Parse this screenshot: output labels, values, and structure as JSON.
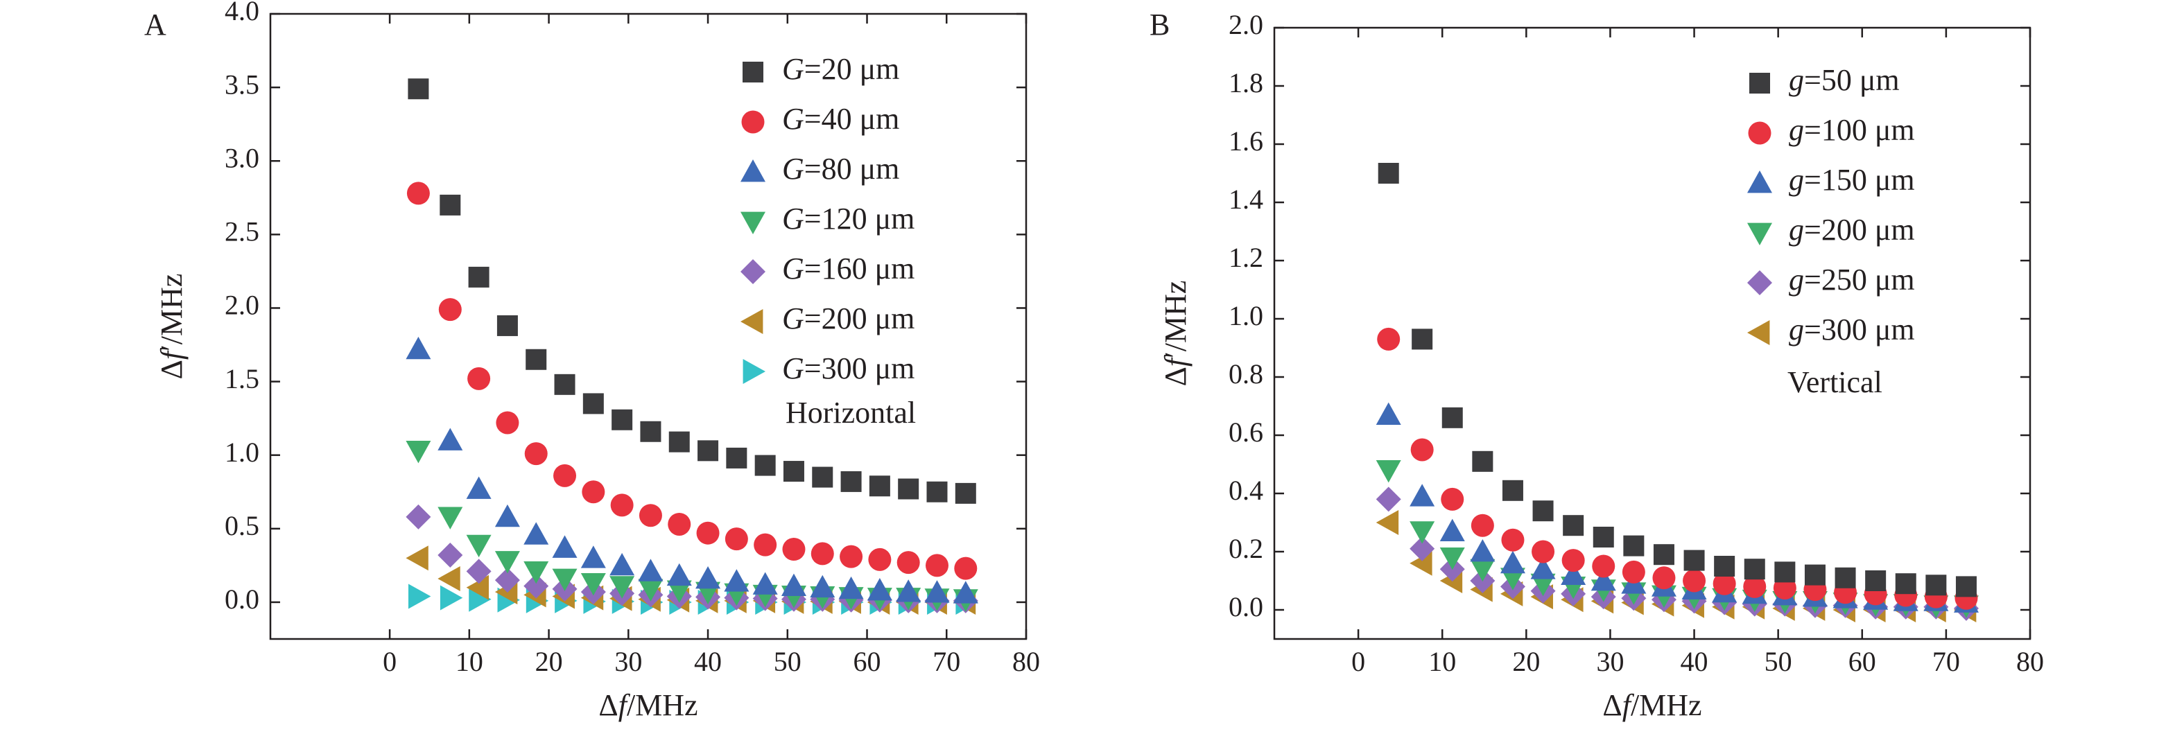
{
  "chart_data": [
    {
      "type": "scatter",
      "panel_label": "A",
      "xlabel_parts": [
        "Δ",
        "f",
        "/MHz"
      ],
      "ylabel_parts": [
        "Δ",
        "f",
        "′/MHz"
      ],
      "xlim": [
        -15,
        80
      ],
      "ylim": [
        -0.25,
        4.0
      ],
      "xticks": [
        0,
        10,
        20,
        30,
        40,
        50,
        60,
        70,
        80
      ],
      "yticks": [
        0.0,
        0.5,
        1.0,
        1.5,
        2.0,
        2.5,
        3.0,
        3.5,
        4.0
      ],
      "ytick_decimals": 1,
      "annotation": "Horizontal",
      "x": [
        3.6,
        7.6,
        11.2,
        14.8,
        18.4,
        22.0,
        25.6,
        29.2,
        32.8,
        36.4,
        40.0,
        43.6,
        47.2,
        50.8,
        54.4,
        58.0,
        61.6,
        65.2,
        68.8,
        72.4
      ],
      "series": [
        {
          "var": "G",
          "rest": "=20 μm",
          "marker": "square",
          "color": "#3c3c3e",
          "values": [
            3.49,
            2.7,
            2.21,
            1.88,
            1.65,
            1.48,
            1.35,
            1.24,
            1.16,
            1.09,
            1.03,
            0.98,
            0.93,
            0.89,
            0.85,
            0.82,
            0.79,
            0.77,
            0.75,
            0.74
          ]
        },
        {
          "var": "G",
          "rest": "=40 μm",
          "marker": "circle",
          "color": "#e8333f",
          "values": [
            2.78,
            1.99,
            1.52,
            1.22,
            1.01,
            0.86,
            0.75,
            0.66,
            0.59,
            0.53,
            0.47,
            0.43,
            0.39,
            0.36,
            0.33,
            0.31,
            0.29,
            0.27,
            0.25,
            0.23
          ]
        },
        {
          "var": "G",
          "rest": "=80 μm",
          "marker": "triangle-up",
          "color": "#3e6ab6",
          "values": [
            1.72,
            1.1,
            0.77,
            0.58,
            0.46,
            0.37,
            0.3,
            0.25,
            0.21,
            0.18,
            0.16,
            0.14,
            0.12,
            0.11,
            0.1,
            0.09,
            0.08,
            0.07,
            0.065,
            0.06
          ]
        },
        {
          "var": "G",
          "rest": "=120 μm",
          "marker": "triangle-down",
          "color": "#3fae6a",
          "values": [
            1.03,
            0.58,
            0.39,
            0.28,
            0.21,
            0.16,
            0.13,
            0.11,
            0.09,
            0.08,
            0.07,
            0.06,
            0.05,
            0.045,
            0.04,
            0.035,
            0.03,
            0.03,
            0.025,
            0.02
          ]
        },
        {
          "var": "G",
          "rest": "=160 μm",
          "marker": "diamond",
          "color": "#8e6bbb",
          "values": [
            0.58,
            0.32,
            0.21,
            0.15,
            0.11,
            0.09,
            0.07,
            0.06,
            0.05,
            0.04,
            0.035,
            0.03,
            0.025,
            0.02,
            0.02,
            0.015,
            0.015,
            0.01,
            0.01,
            0.01
          ]
        },
        {
          "var": "G",
          "rest": "=200 μm",
          "marker": "triangle-left",
          "color": "#b9892a",
          "values": [
            0.3,
            0.16,
            0.1,
            0.07,
            0.05,
            0.04,
            0.03,
            0.025,
            0.02,
            0.015,
            0.01,
            0.01,
            0.01,
            0.005,
            0.005,
            0.005,
            0.0,
            0.0,
            0.0,
            0.0
          ]
        },
        {
          "var": "G",
          "rest": "=300 μm",
          "marker": "triangle-right",
          "color": "#35c2c8",
          "values": [
            0.04,
            0.03,
            0.02,
            0.015,
            0.01,
            0.01,
            0.005,
            0.005,
            0.0,
            0.0,
            0.0,
            0.0,
            0.0,
            0.0,
            0.0,
            0.0,
            0.0,
            0.0,
            0.0,
            0.0
          ]
        }
      ]
    },
    {
      "type": "scatter",
      "panel_label": "B",
      "xlabel_parts": [
        "Δ",
        "f",
        "/MHz"
      ],
      "ylabel_parts": [
        "Δ",
        "f",
        "′/MHz"
      ],
      "xlim": [
        -10,
        80
      ],
      "ylim": [
        -0.1,
        2.0
      ],
      "xticks": [
        0,
        10,
        20,
        30,
        40,
        50,
        60,
        70,
        80
      ],
      "yticks": [
        0.0,
        0.2,
        0.4,
        0.6,
        0.8,
        1.0,
        1.2,
        1.4,
        1.6,
        1.8,
        2.0
      ],
      "ytick_decimals": 1,
      "annotation": "Vertical",
      "x": [
        3.6,
        7.6,
        11.2,
        14.8,
        18.4,
        22.0,
        25.6,
        29.2,
        32.8,
        36.4,
        40.0,
        43.6,
        47.2,
        50.8,
        54.4,
        58.0,
        61.6,
        65.2,
        68.8,
        72.4
      ],
      "series": [
        {
          "var": "g",
          "rest": "=50 μm",
          "marker": "square",
          "color": "#3c3c3e",
          "values": [
            1.5,
            0.93,
            0.66,
            0.51,
            0.41,
            0.34,
            0.29,
            0.25,
            0.22,
            0.19,
            0.17,
            0.15,
            0.14,
            0.13,
            0.12,
            0.11,
            0.1,
            0.09,
            0.085,
            0.08
          ]
        },
        {
          "var": "g",
          "rest": "=100 μm",
          "marker": "circle",
          "color": "#e8333f",
          "values": [
            0.93,
            0.55,
            0.38,
            0.29,
            0.24,
            0.2,
            0.17,
            0.15,
            0.13,
            0.11,
            0.1,
            0.09,
            0.08,
            0.075,
            0.07,
            0.06,
            0.055,
            0.05,
            0.045,
            0.04
          ]
        },
        {
          "var": "g",
          "rest": "=150 μm",
          "marker": "triangle-up",
          "color": "#3e6ab6",
          "values": [
            0.67,
            0.39,
            0.27,
            0.2,
            0.16,
            0.14,
            0.12,
            0.1,
            0.09,
            0.08,
            0.07,
            0.06,
            0.055,
            0.05,
            0.045,
            0.04,
            0.035,
            0.03,
            0.03,
            0.025
          ]
        },
        {
          "var": "g",
          "rest": "=200 μm",
          "marker": "triangle-down",
          "color": "#3fae6a",
          "values": [
            0.48,
            0.27,
            0.18,
            0.14,
            0.11,
            0.09,
            0.08,
            0.07,
            0.06,
            0.05,
            0.045,
            0.04,
            0.035,
            0.03,
            0.03,
            0.025,
            0.02,
            0.02,
            0.015,
            0.015
          ]
        },
        {
          "var": "g",
          "rest": "=250 μm",
          "marker": "diamond",
          "color": "#8e6bbb",
          "values": [
            0.38,
            0.21,
            0.14,
            0.1,
            0.08,
            0.065,
            0.055,
            0.045,
            0.04,
            0.035,
            0.03,
            0.025,
            0.02,
            0.02,
            0.015,
            0.015,
            0.01,
            0.01,
            0.01,
            0.005
          ]
        },
        {
          "var": "g",
          "rest": "=300 μm",
          "marker": "triangle-left",
          "color": "#b9892a",
          "values": [
            0.3,
            0.16,
            0.1,
            0.07,
            0.055,
            0.045,
            0.035,
            0.03,
            0.025,
            0.02,
            0.015,
            0.01,
            0.01,
            0.005,
            0.005,
            0.0,
            0.0,
            0.0,
            0.0,
            0.0
          ]
        }
      ]
    }
  ]
}
